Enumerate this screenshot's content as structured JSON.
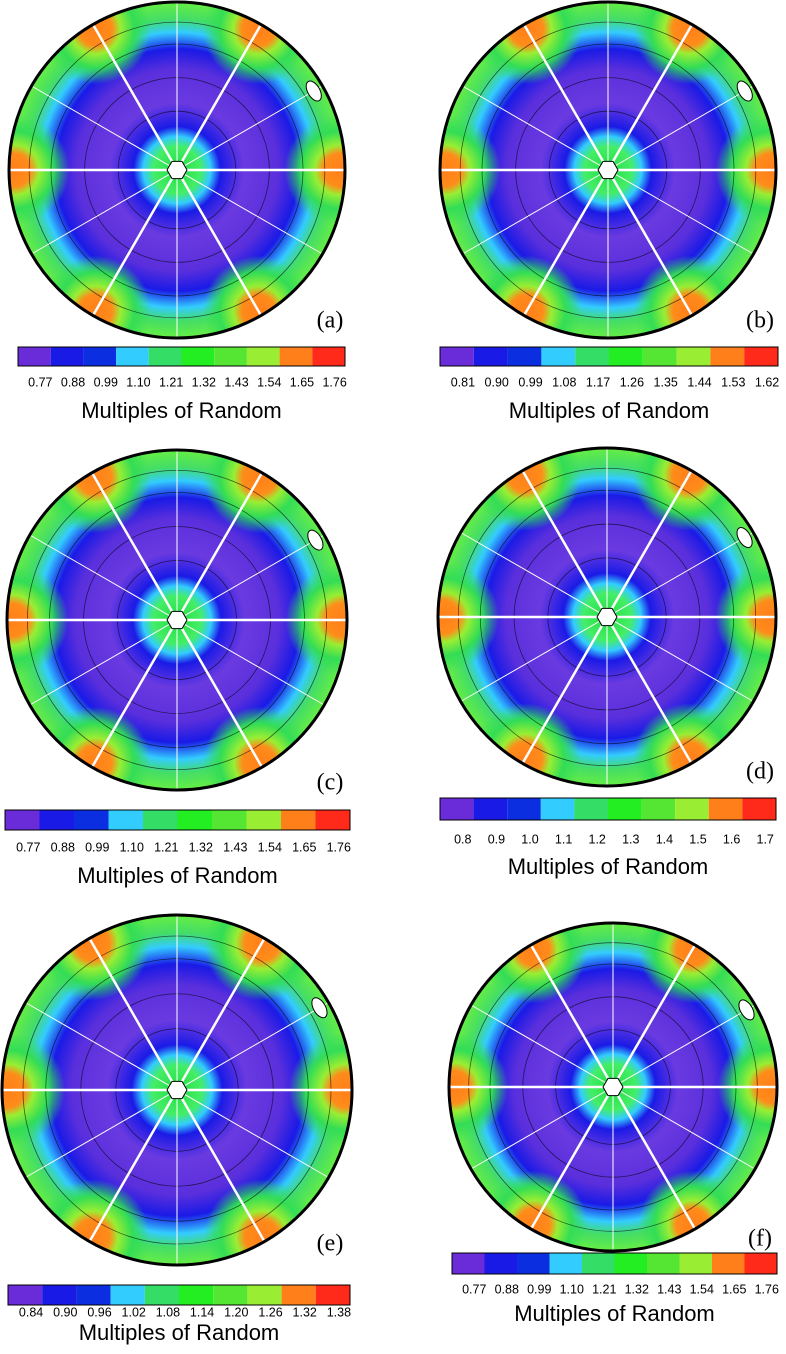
{
  "panels": [
    {
      "label": "(a)",
      "ticks": [
        "0.77",
        "0.88",
        "0.99",
        "1.10",
        "1.21",
        "1.32",
        "1.43",
        "1.54",
        "1.65",
        "1.76"
      ],
      "caption": "Multiples of Random"
    },
    {
      "label": "(b)",
      "ticks": [
        "0.81",
        "0.90",
        "0.99",
        "1.08",
        "1.17",
        "1.26",
        "1.35",
        "1.44",
        "1.53",
        "1.62"
      ],
      "caption": "Multiples of Random"
    },
    {
      "label": "(c)",
      "ticks": [
        "0.77",
        "0.88",
        "0.99",
        "1.10",
        "1.21",
        "1.32",
        "1.43",
        "1.54",
        "1.65",
        "1.76"
      ],
      "caption": "Multiples of Random"
    },
    {
      "label": "(d)",
      "ticks": [
        "0.8",
        "0.9",
        "1.0",
        "1.1",
        "1.2",
        "1.3",
        "1.4",
        "1.5",
        "1.6",
        "1.7"
      ],
      "caption": "Multiples of Random"
    },
    {
      "label": "(e)",
      "ticks": [
        "0.84",
        "0.90",
        "0.96",
        "1.02",
        "1.08",
        "1.14",
        "1.20",
        "1.26",
        "1.32",
        "1.38"
      ],
      "caption": "Multiples of Random"
    },
    {
      "label": "(f)",
      "ticks": [
        "0.77",
        "0.88",
        "0.99",
        "1.10",
        "1.21",
        "1.32",
        "1.43",
        "1.54",
        "1.65",
        "1.76"
      ],
      "caption": "Multiples of Random"
    }
  ]
}
